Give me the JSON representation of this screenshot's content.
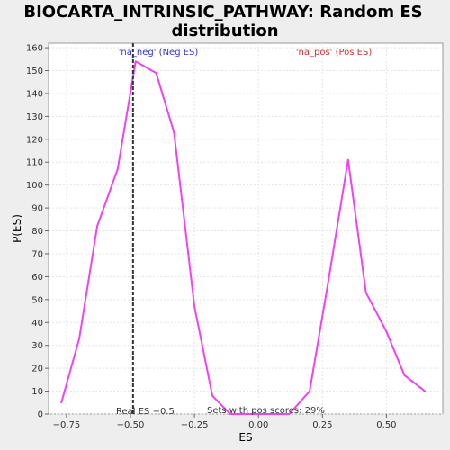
{
  "chart_data": {
    "type": "line",
    "title_line1": "BIOCARTA_INTRINSIC_PATHWAY: Random ES",
    "title_line2": "distribution",
    "xlabel": "ES",
    "ylabel": "P(ES)",
    "xlim": [
      -0.82,
      0.72
    ],
    "ylim": [
      0,
      162
    ],
    "xticks": [
      -0.75,
      -0.5,
      -0.25,
      0.0,
      0.25,
      0.5
    ],
    "xtick_labels": [
      "−0.75",
      "−0.50",
      "−0.25",
      "0.00",
      "0.25",
      "0.50"
    ],
    "yticks": [
      0,
      10,
      20,
      30,
      40,
      50,
      60,
      70,
      80,
      90,
      100,
      110,
      120,
      130,
      140,
      150,
      160
    ],
    "grid": true,
    "series": [
      {
        "color": "#ee44ee",
        "x": [
          -0.77,
          -0.7,
          -0.63,
          -0.55,
          -0.48,
          -0.4,
          -0.33,
          -0.25,
          -0.18,
          -0.11,
          -0.04,
          0.04,
          0.12,
          0.2,
          0.27,
          0.35,
          0.42,
          0.5,
          0.57,
          0.65
        ],
        "y": [
          5,
          33,
          82,
          107,
          154,
          149,
          123,
          47,
          8,
          0,
          0,
          0,
          0,
          10,
          56,
          111,
          53,
          36,
          17,
          10
        ]
      }
    ],
    "real_es": -0.49,
    "annotations": {
      "neg": "'na_neg' (Neg ES)",
      "pos": "'na_pos' (Pos ES)",
      "real_es": "Real ES −0.5",
      "sets_pos": "Sets with pos scores: 29%"
    }
  }
}
